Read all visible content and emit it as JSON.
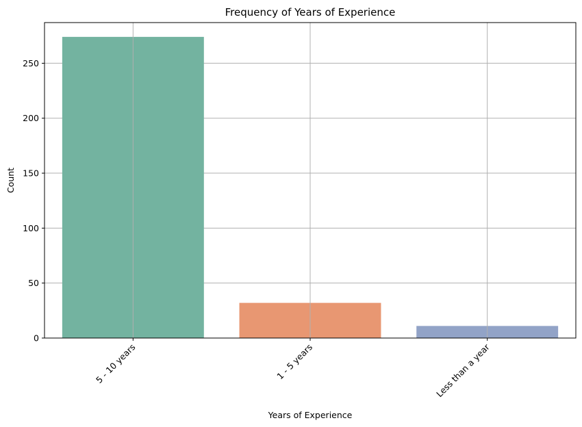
{
  "chart_data": {
    "type": "bar",
    "title": "Frequency of Years of Experience",
    "xlabel": "Years of Experience",
    "ylabel": "Count",
    "categories": [
      "5 - 10 years",
      "1 - 5 years",
      "Less than a year"
    ],
    "values": [
      274,
      32,
      11
    ],
    "ylim": [
      0,
      287
    ],
    "yticks": [
      0,
      50,
      100,
      150,
      200,
      250
    ],
    "grid": true,
    "xtick_rotation": 45,
    "colors": [
      "#73b3a0",
      "#e89772",
      "#92a3c7"
    ]
  }
}
